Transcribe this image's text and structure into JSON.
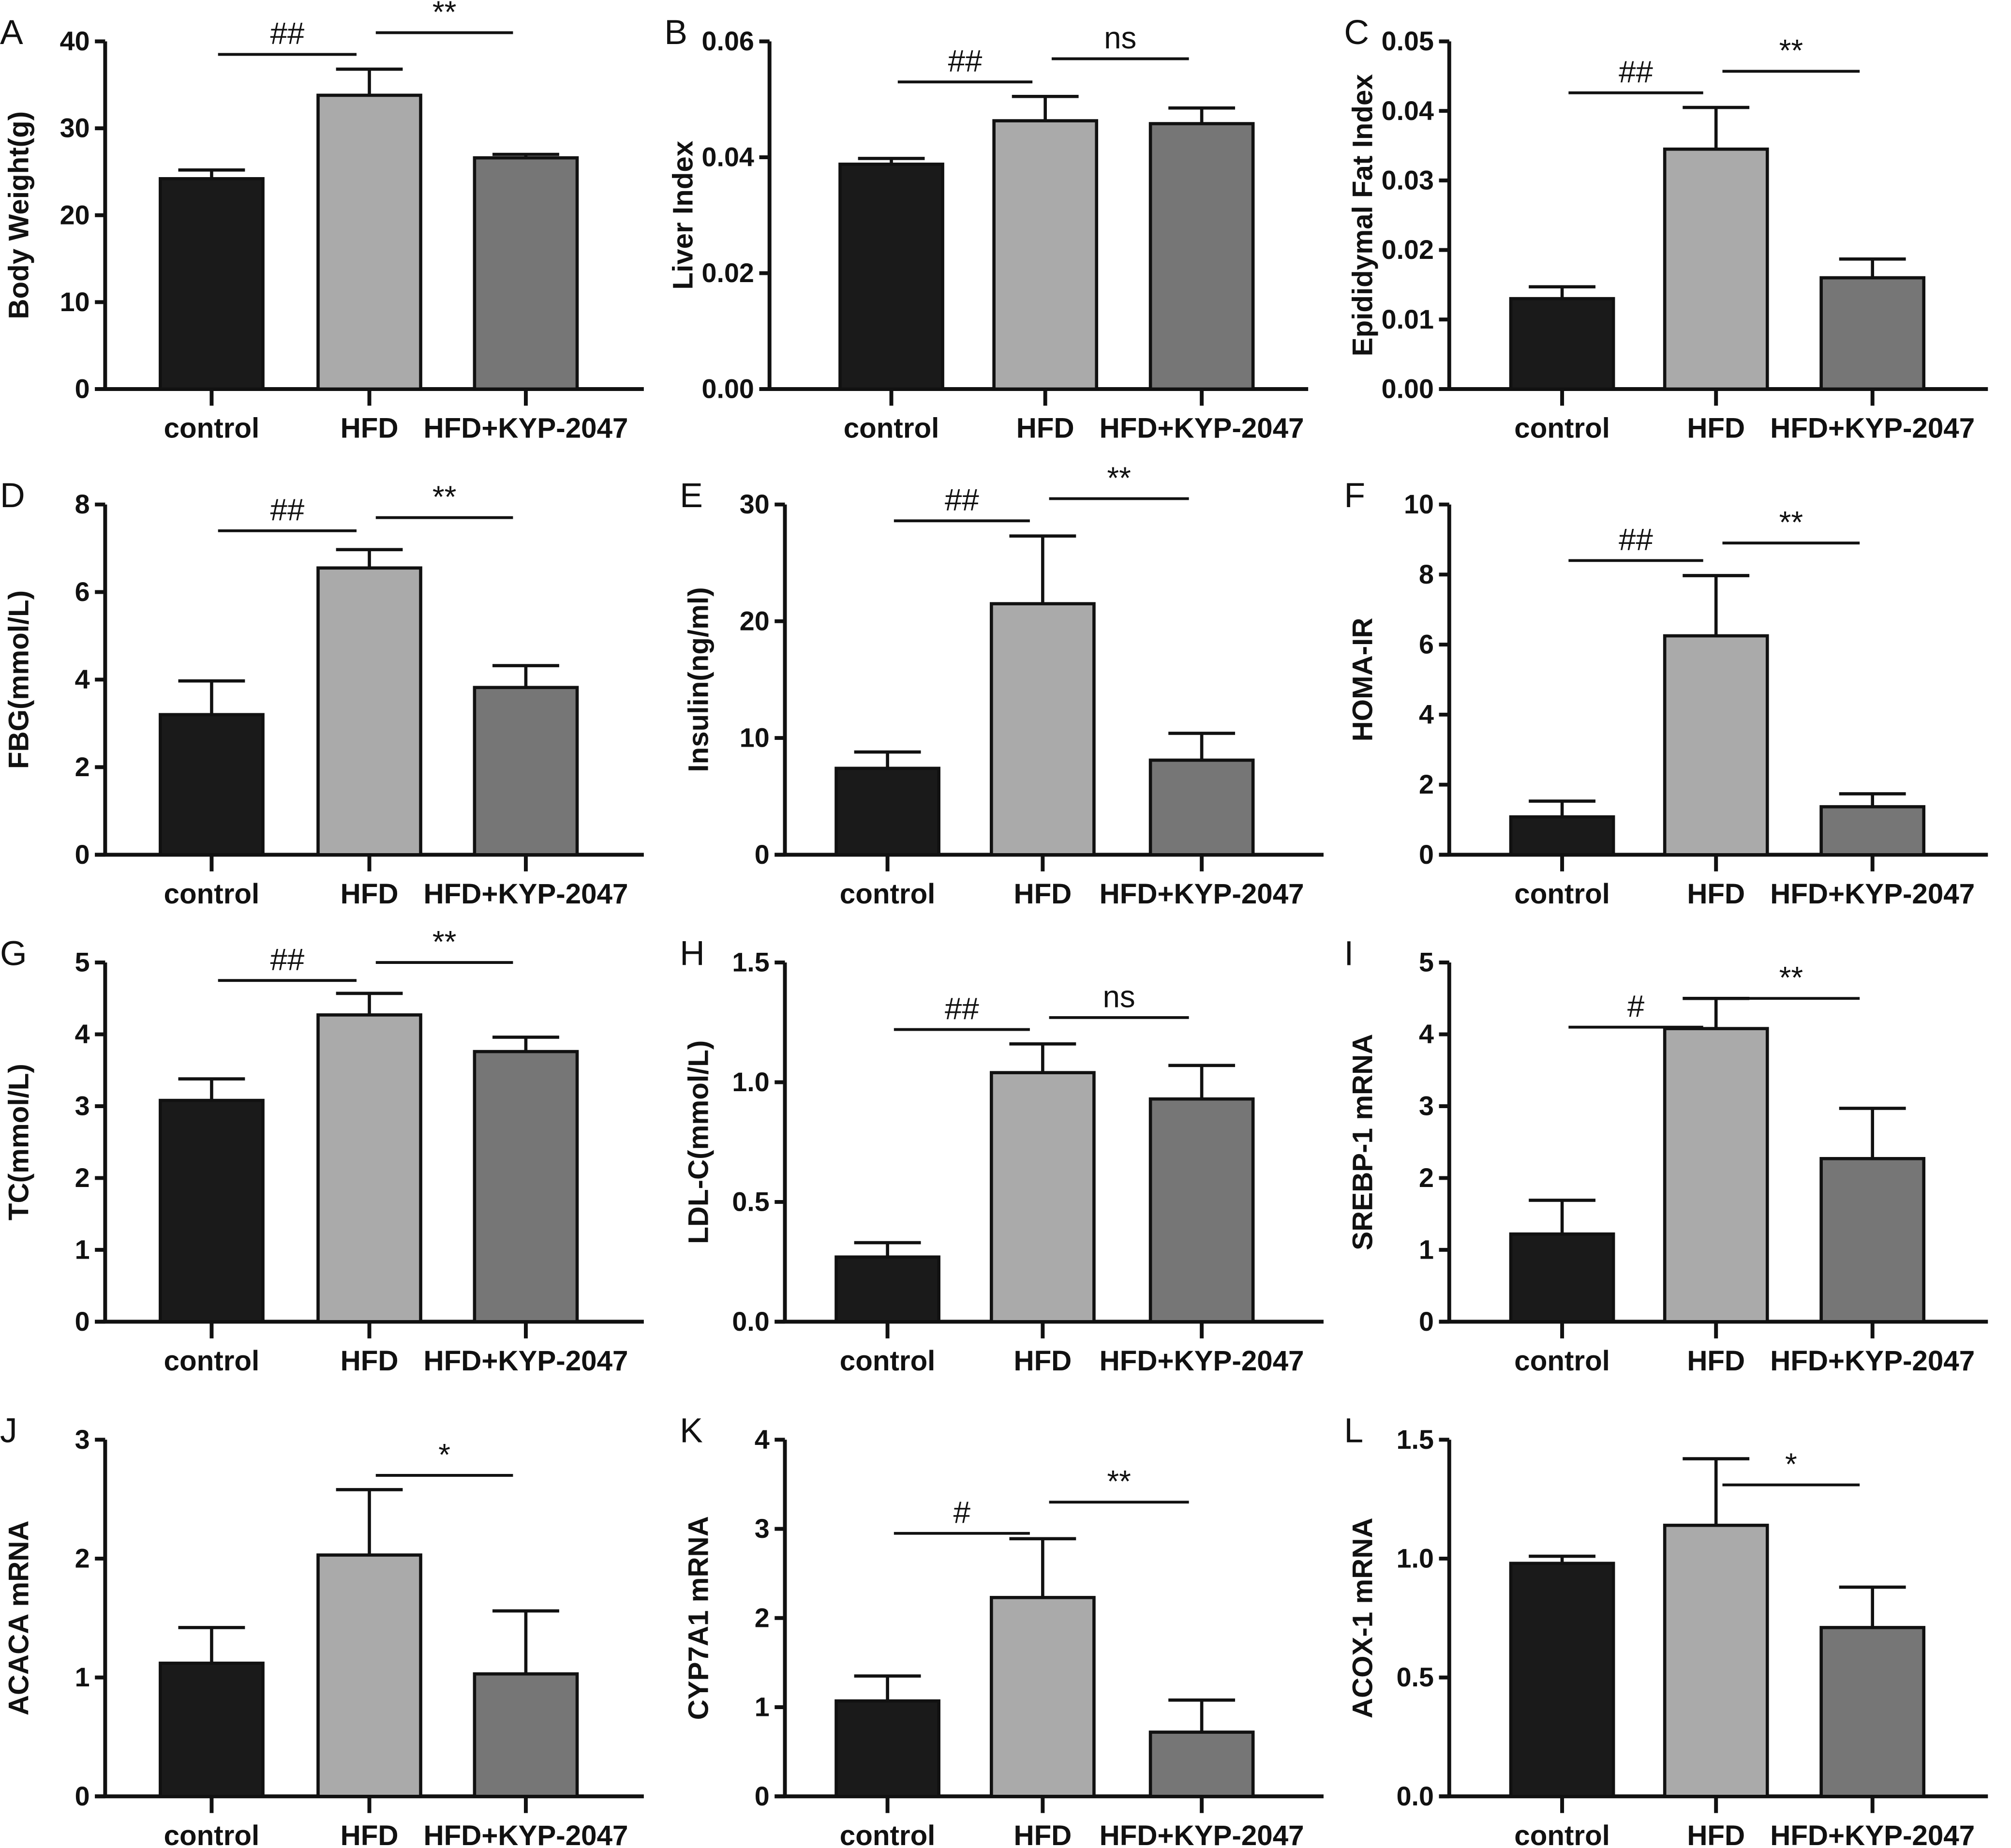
{
  "chart_data": [
    {
      "panel": "A",
      "type": "bar",
      "ylabel": "Body Weight(g)",
      "categories": [
        "control",
        "HFD",
        "HFD+KYP-2047"
      ],
      "values": [
        24.2,
        33.8,
        26.6
      ],
      "errors": [
        1.0,
        3.0,
        0.4
      ],
      "ylim": [
        0,
        40
      ],
      "yticks": [
        "0",
        "10",
        "20",
        "30",
        "40"
      ],
      "significance": [
        {
          "from": "control",
          "to": "HFD",
          "label": "##"
        },
        {
          "from": "HFD",
          "to": "HFD+KYP-2047",
          "label": "**"
        }
      ],
      "colors": [
        "#1a1a1a",
        "#aaaaaa",
        "#767676"
      ]
    },
    {
      "panel": "B",
      "type": "bar",
      "ylabel": "Liver Index",
      "categories": [
        "control",
        "HFD",
        "HFD+KYP-2047"
      ],
      "values": [
        0.0388,
        0.0463,
        0.0458
      ],
      "errors": [
        0.001,
        0.0042,
        0.0027
      ],
      "ylim": [
        0,
        0.06
      ],
      "yticks": [
        "0.00",
        "0.02",
        "0.04",
        "0.06"
      ],
      "significance": [
        {
          "from": "control",
          "to": "HFD",
          "label": "##"
        },
        {
          "from": "HFD",
          "to": "HFD+KYP-2047",
          "label": "ns"
        }
      ],
      "colors": [
        "#1a1a1a",
        "#aaaaaa",
        "#767676"
      ]
    },
    {
      "panel": "C",
      "type": "bar",
      "ylabel": "Epididymal Fat Index",
      "categories": [
        "control",
        "HFD",
        "HFD+KYP-2047"
      ],
      "values": [
        0.013,
        0.0345,
        0.016
      ],
      "errors": [
        0.0017,
        0.006,
        0.0027
      ],
      "ylim": [
        0,
        0.05
      ],
      "yticks": [
        "0.00",
        "0.01",
        "0.02",
        "0.03",
        "0.04",
        "0.05"
      ],
      "significance": [
        {
          "from": "control",
          "to": "HFD",
          "label": "##"
        },
        {
          "from": "HFD",
          "to": "HFD+KYP-2047",
          "label": "**"
        }
      ],
      "colors": [
        "#1a1a1a",
        "#aaaaaa",
        "#767676"
      ]
    },
    {
      "panel": "D",
      "type": "bar",
      "ylabel": "FBG(mmol/L)",
      "categories": [
        "control",
        "HFD",
        "HFD+KYP-2047"
      ],
      "values": [
        3.2,
        6.55,
        3.82
      ],
      "errors": [
        0.77,
        0.42,
        0.5
      ],
      "ylim": [
        0,
        8
      ],
      "yticks": [
        "0",
        "2",
        "4",
        "6",
        "8"
      ],
      "significance": [
        {
          "from": "control",
          "to": "HFD",
          "label": "##"
        },
        {
          "from": "HFD",
          "to": "HFD+KYP-2047",
          "label": "**"
        }
      ],
      "colors": [
        "#1a1a1a",
        "#aaaaaa",
        "#767676"
      ]
    },
    {
      "panel": "E",
      "type": "bar",
      "ylabel": "Insulin(ng/ml)",
      "categories": [
        "control",
        "HFD",
        "HFD+KYP-2047"
      ],
      "values": [
        7.4,
        21.5,
        8.1
      ],
      "errors": [
        1.4,
        5.8,
        2.3
      ],
      "ylim": [
        0,
        30
      ],
      "yticks": [
        "0",
        "10",
        "20",
        "30"
      ],
      "significance": [
        {
          "from": "control",
          "to": "HFD",
          "label": "##"
        },
        {
          "from": "HFD",
          "to": "HFD+KYP-2047",
          "label": "**"
        }
      ],
      "colors": [
        "#1a1a1a",
        "#aaaaaa",
        "#767676"
      ]
    },
    {
      "panel": "F",
      "type": "bar",
      "ylabel": "HOMA-IR",
      "categories": [
        "control",
        "HFD",
        "HFD+KYP-2047"
      ],
      "values": [
        1.08,
        6.25,
        1.37
      ],
      "errors": [
        0.45,
        1.72,
        0.37
      ],
      "ylim": [
        0,
        10
      ],
      "yticks": [
        "0",
        "2",
        "4",
        "6",
        "8",
        "10"
      ],
      "significance": [
        {
          "from": "control",
          "to": "HFD",
          "label": "##"
        },
        {
          "from": "HFD",
          "to": "HFD+KYP-2047",
          "label": "**"
        }
      ],
      "colors": [
        "#1a1a1a",
        "#aaaaaa",
        "#767676"
      ]
    },
    {
      "panel": "G",
      "type": "bar",
      "ylabel": "TC(mmol/L)",
      "categories": [
        "control",
        "HFD",
        "HFD+KYP-2047"
      ],
      "values": [
        3.08,
        4.27,
        3.76
      ],
      "errors": [
        0.3,
        0.3,
        0.2
      ],
      "ylim": [
        0,
        5
      ],
      "yticks": [
        "0",
        "1",
        "2",
        "3",
        "4",
        "5"
      ],
      "significance": [
        {
          "from": "control",
          "to": "HFD",
          "label": "##"
        },
        {
          "from": "HFD",
          "to": "HFD+KYP-2047",
          "label": "**"
        }
      ],
      "colors": [
        "#1a1a1a",
        "#aaaaaa",
        "#767676"
      ]
    },
    {
      "panel": "H",
      "type": "bar",
      "ylabel": "LDL-C(mmol/L)",
      "categories": [
        "control",
        "HFD",
        "HFD+KYP-2047"
      ],
      "values": [
        0.27,
        1.04,
        0.93
      ],
      "errors": [
        0.06,
        0.12,
        0.14
      ],
      "ylim": [
        0,
        1.5
      ],
      "yticks": [
        "0.0",
        "0.5",
        "1.0",
        "1.5"
      ],
      "significance": [
        {
          "from": "control",
          "to": "HFD",
          "label": "##"
        },
        {
          "from": "HFD",
          "to": "HFD+KYP-2047",
          "label": "ns"
        }
      ],
      "colors": [
        "#1a1a1a",
        "#aaaaaa",
        "#767676"
      ]
    },
    {
      "panel": "I",
      "type": "bar",
      "ylabel": "SREBP-1 mRNA",
      "categories": [
        "control",
        "HFD",
        "HFD+KYP-2047"
      ],
      "values": [
        1.22,
        4.08,
        2.27
      ],
      "errors": [
        0.47,
        0.42,
        0.7
      ],
      "ylim": [
        0,
        5
      ],
      "yticks": [
        "0",
        "1",
        "2",
        "3",
        "4",
        "5"
      ],
      "significance": [
        {
          "from": "control",
          "to": "HFD",
          "label": "#"
        },
        {
          "from": "HFD",
          "to": "HFD+KYP-2047",
          "label": "**"
        }
      ],
      "colors": [
        "#1a1a1a",
        "#aaaaaa",
        "#767676"
      ]
    },
    {
      "panel": "J",
      "type": "bar",
      "ylabel": "ACACA mRNA",
      "categories": [
        "control",
        "HFD",
        "HFD+KYP-2047"
      ],
      "values": [
        1.12,
        2.03,
        1.03
      ],
      "errors": [
        0.3,
        0.55,
        0.53
      ],
      "ylim": [
        0,
        3
      ],
      "yticks": [
        "0",
        "1",
        "2",
        "3"
      ],
      "significance": [
        {
          "from": "HFD",
          "to": "HFD+KYP-2047",
          "label": "*"
        }
      ],
      "colors": [
        "#1a1a1a",
        "#aaaaaa",
        "#767676"
      ]
    },
    {
      "panel": "K",
      "type": "bar",
      "ylabel": "CYP7A1 mRNA",
      "categories": [
        "control",
        "HFD",
        "HFD+KYP-2047"
      ],
      "values": [
        1.07,
        2.23,
        0.72
      ],
      "errors": [
        0.28,
        0.66,
        0.36
      ],
      "ylim": [
        0,
        4
      ],
      "yticks": [
        "0",
        "1",
        "2",
        "3",
        "4"
      ],
      "significance": [
        {
          "from": "control",
          "to": "HFD",
          "label": "#"
        },
        {
          "from": "HFD",
          "to": "HFD+KYP-2047",
          "label": "**"
        }
      ],
      "colors": [
        "#1a1a1a",
        "#aaaaaa",
        "#767676"
      ]
    },
    {
      "panel": "L",
      "type": "bar",
      "ylabel": "ACOX-1 mRNA",
      "categories": [
        "control",
        "HFD",
        "HFD+KYP-2047"
      ],
      "values": [
        0.98,
        1.14,
        0.71
      ],
      "errors": [
        0.03,
        0.28,
        0.17
      ],
      "ylim": [
        0,
        1.5
      ],
      "yticks": [
        "0.0",
        "0.5",
        "1.0",
        "1.5"
      ],
      "significance": [
        {
          "from": "HFD",
          "to": "HFD+KYP-2047",
          "label": "*"
        }
      ],
      "colors": [
        "#1a1a1a",
        "#aaaaaa",
        "#767676"
      ]
    }
  ]
}
